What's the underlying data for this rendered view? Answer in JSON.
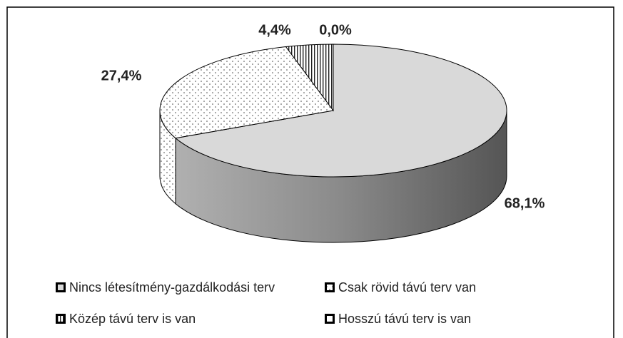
{
  "chart_data": {
    "type": "pie",
    "categories": [
      "Nincs létesítmény-gazdálkodási terv",
      "Csak rövid távú terv van",
      "Közép távú terv is van",
      "Hosszú távú terv is van"
    ],
    "values": [
      68.1,
      27.4,
      4.4,
      0.0
    ],
    "value_labels": [
      "68,1%",
      "27,4%",
      "4,4%",
      "0,0%"
    ],
    "legend": "bottom"
  }
}
